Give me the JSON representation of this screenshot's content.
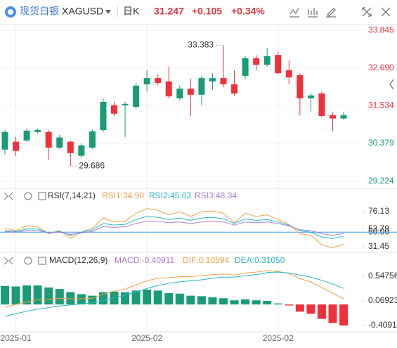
{
  "header": {
    "name": "现货白银",
    "symbol": "XAGUSD",
    "period": "日K",
    "price": 31.247,
    "change": {
      "value": 0.105,
      "label": "+0.105"
    },
    "change_pct": {
      "value": 0.34,
      "label": "+0.34%"
    }
  },
  "chart_data": [
    {
      "type": "candlestick",
      "up_color": "#1a9c74",
      "down_color": "#f0313c",
      "categories": [
        null,
        "2025-01",
        null,
        null,
        null,
        null,
        null,
        null,
        null,
        null,
        null,
        null,
        null,
        "2025-02",
        null,
        null,
        null,
        null,
        null,
        null,
        null,
        null,
        null,
        null,
        null,
        "2025-02",
        null,
        null,
        null,
        null,
        null,
        null
      ],
      "open": [
        30.19,
        30.43,
        30.47,
        30.73,
        30.73,
        30.25,
        30.43,
        30.0,
        30.25,
        30.79,
        31.55,
        31.55,
        31.5,
        32.19,
        32.38,
        32.28,
        31.76,
        32.06,
        31.87,
        32.28,
        32.38,
        32.19,
        32.45,
        32.99,
        32.79,
        33.09,
        32.62,
        32.47,
        31.76,
        31.91,
        31.24,
        31.142
      ],
      "high": [
        30.79,
        30.58,
        30.84,
        30.84,
        30.79,
        30.64,
        30.47,
        30.38,
        30.81,
        31.76,
        31.65,
        31.65,
        32.23,
        32.62,
        32.49,
        32.73,
        32.15,
        32.36,
        32.45,
        32.53,
        33.383,
        32.62,
        33.05,
        33.09,
        33.31,
        33.18,
        32.92,
        32.53,
        31.93,
        31.97,
        31.33,
        31.35
      ],
      "low": [
        30.04,
        29.99,
        30.43,
        30.68,
        29.88,
        30.21,
        29.686,
        29.93,
        30.21,
        30.73,
        31.22,
        30.58,
        31.44,
        31.97,
        32.15,
        31.76,
        31.7,
        31.22,
        31.55,
        32.02,
        32.1,
        31.85,
        32.36,
        32.62,
        32.73,
        32.49,
        32.19,
        31.24,
        31.33,
        31.18,
        30.75,
        31.1
      ],
      "close": [
        30.73,
        30.15,
        30.77,
        30.79,
        30.25,
        30.56,
        30.08,
        30.32,
        30.75,
        31.65,
        31.29,
        31.59,
        32.15,
        32.38,
        32.23,
        31.82,
        32.06,
        31.87,
        32.38,
        32.38,
        32.19,
        31.91,
        32.99,
        32.79,
        33.05,
        32.53,
        32.4,
        31.76,
        31.85,
        31.22,
        31.142,
        31.247
      ],
      "ylim": [
        29.0,
        34.02
      ],
      "yticks": [
        33.845,
        {
          "value": 32.69,
          "label": "32.690"
        },
        31.534,
        30.379,
        29.224
      ],
      "annotations": [
        {
          "index": 20,
          "value": 33.383,
          "label": "33.383"
        },
        {
          "index": 6,
          "value": 29.686,
          "label": "29.686"
        }
      ],
      "grid": true
    },
    {
      "type": "line",
      "title": "RSI(7,14,21)",
      "hline": 50,
      "hline_color": "#3d9be9",
      "series": [
        {
          "name": "RSI1",
          "label": "RSI1:34.90",
          "color": "#f5a04a",
          "values": [
            55,
            52,
            58,
            57,
            48,
            52,
            42,
            50,
            55,
            68,
            63,
            64,
            74,
            80,
            78,
            72,
            76,
            70,
            76,
            77,
            74,
            62,
            74,
            70,
            72,
            66,
            60,
            48,
            46,
            34,
            30,
            34.9
          ]
        },
        {
          "name": "RSI2",
          "label": "RSI2:45.03",
          "color": "#28b5c8",
          "values": [
            52,
            51,
            54,
            54,
            49,
            51,
            46,
            50,
            53,
            61,
            59,
            60,
            66,
            70,
            69,
            66,
            68,
            65,
            68,
            69,
            67,
            61,
            67,
            65,
            66,
            63,
            59,
            52,
            50,
            44,
            42,
            45.03
          ]
        },
        {
          "name": "RSI3",
          "label": "RSI3:48.34",
          "color": "#a77fd8",
          "values": [
            51,
            50,
            52,
            52,
            49,
            50,
            47,
            49,
            51,
            57,
            56,
            57,
            61,
            64,
            64,
            62,
            63,
            61,
            63,
            64,
            63,
            59,
            63,
            62,
            63,
            61,
            58,
            53,
            52,
            48,
            46,
            48.34
          ]
        }
      ],
      "ylim": [
        26.09,
        90.43
      ],
      "yticks": [
        76.13,
        53.79,
        {
          "value": 50,
          "label": "50.00"
        },
        31.45
      ]
    },
    {
      "type": "macd",
      "title": "MACD(12,26,9)",
      "series": [
        {
          "name": "MACD",
          "label": "MACD:-0.40911",
          "color": "#b07ad6",
          "up_color": "#1a9c74",
          "down_color": "#f0313c",
          "values": [
            0.36,
            0.35,
            0.37,
            0.37,
            0.33,
            0.3,
            0.24,
            0.2,
            0.17,
            0.24,
            0.25,
            0.24,
            0.27,
            0.29,
            0.27,
            0.22,
            0.21,
            0.17,
            0.16,
            0.14,
            0.12,
            0.08,
            0.1,
            0.08,
            0.07,
            0.02,
            -0.02,
            -0.14,
            -0.18,
            -0.28,
            -0.36,
            -0.40911
          ]
        },
        {
          "name": "DIF",
          "label": "DIF:0.10594",
          "color": "#f5a04a",
          "values": [
            -0.05,
            0.0,
            0.05,
            0.09,
            0.1,
            0.12,
            0.11,
            0.11,
            0.12,
            0.2,
            0.26,
            0.3,
            0.38,
            0.46,
            0.51,
            0.52,
            0.54,
            0.54,
            0.56,
            0.58,
            0.59,
            0.57,
            0.61,
            0.63,
            0.66,
            0.64,
            0.6,
            0.5,
            0.44,
            0.33,
            0.22,
            0.10594
          ]
        },
        {
          "name": "DEA",
          "label": "DEA:0.31050",
          "color": "#28b5c8",
          "values": [
            -0.23,
            -0.18,
            -0.13,
            -0.09,
            -0.06,
            -0.03,
            -0.01,
            0.01,
            0.03,
            0.08,
            0.13,
            0.18,
            0.24,
            0.31,
            0.37,
            0.41,
            0.44,
            0.46,
            0.48,
            0.51,
            0.53,
            0.53,
            0.56,
            0.58,
            0.62,
            0.63,
            0.61,
            0.57,
            0.53,
            0.47,
            0.4,
            0.3105
          ]
        }
      ],
      "ylim": [
        -0.532,
        0.7525
      ],
      "yticks": [
        0.54756,
        0.06923,
        -0.40911
      ]
    }
  ]
}
